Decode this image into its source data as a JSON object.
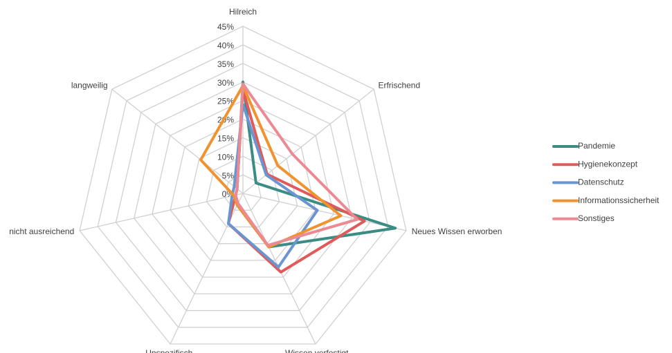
{
  "chart_data": {
    "type": "radar",
    "categories": [
      "Hilreich",
      "Erfrischend",
      "Neues Wissen erworben",
      "Wissen verfestigt",
      "Unspezifisch",
      "nicht ausreichend",
      "langweilig"
    ],
    "ylim": [
      0,
      45
    ],
    "yticks": [
      {
        "value": 0,
        "label": "0%"
      },
      {
        "value": 5,
        "label": "5%"
      },
      {
        "value": 10,
        "label": "10%"
      },
      {
        "value": 15,
        "label": "15%"
      },
      {
        "value": 20,
        "label": "20%"
      },
      {
        "value": 25,
        "label": "25%"
      },
      {
        "value": 30,
        "label": "30%"
      },
      {
        "value": 35,
        "label": "35%"
      },
      {
        "value": 40,
        "label": "40%"
      },
      {
        "value": 45,
        "label": "45%"
      }
    ],
    "grid": true,
    "legend": "right",
    "series": [
      {
        "name": "Pandemie",
        "color": "#3a8c84",
        "values": [
          30,
          4.5,
          42,
          16,
          3.5,
          2,
          2
        ]
      },
      {
        "name": "Hygienekonzept",
        "color": "#e05a5a",
        "values": [
          28,
          8.3,
          33.5,
          23.5,
          9,
          2,
          2
        ]
      },
      {
        "name": "Datenschutz",
        "color": "#6b95d1",
        "values": [
          24,
          8,
          20.5,
          22,
          9,
          3,
          3
        ]
      },
      {
        "name": "Informationssicherheit",
        "color": "#f0922e",
        "values": [
          29,
          12,
          27,
          16,
          3.5,
          2.5,
          14.5
        ]
      },
      {
        "name": "Sonstiges",
        "color": "#ec8a94",
        "values": [
          29.5,
          17,
          31.5,
          15.5,
          3,
          2,
          2
        ]
      }
    ]
  }
}
